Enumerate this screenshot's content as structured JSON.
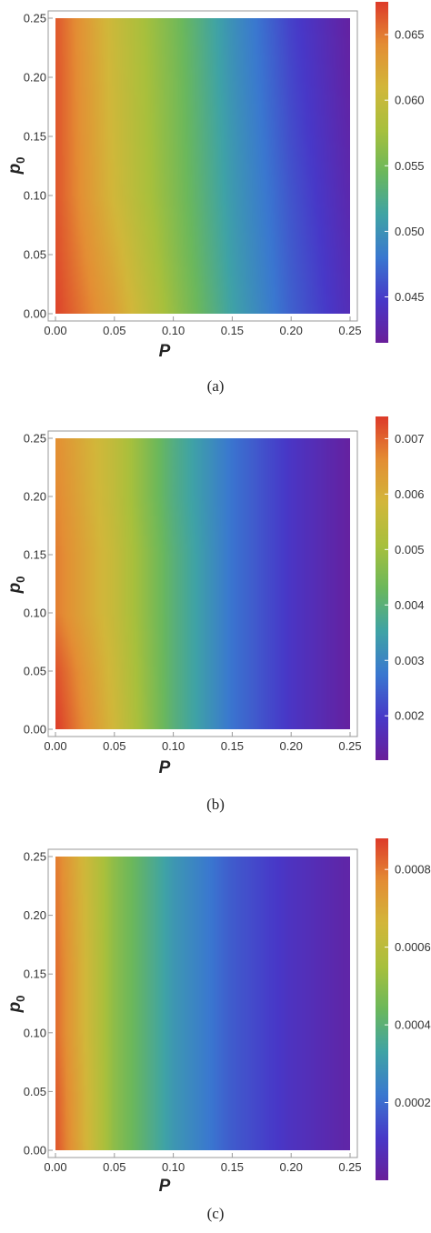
{
  "chart_data": [
    {
      "type": "heatmap",
      "caption": "(a)",
      "xlabel": "P",
      "ylabel": {
        "base": "p",
        "sub": "0"
      },
      "xlim": [
        0,
        0.25
      ],
      "ylim": [
        0,
        0.25
      ],
      "xticks": [
        "0.00",
        "0.05",
        "0.10",
        "0.15",
        "0.20",
        "0.25"
      ],
      "yticks": [
        "0.00",
        "0.05",
        "0.10",
        "0.15",
        "0.20",
        "0.25"
      ],
      "colorbar": {
        "min": 0.0415,
        "max": 0.0675,
        "ticks": [
          "0.045",
          "0.050",
          "0.055",
          "0.060",
          "0.065"
        ]
      },
      "palette": [
        "#6a1e9a",
        "#4838c8",
        "#3a78d0",
        "#3fa3a6",
        "#6bb85c",
        "#a8c03c",
        "#d2b73a",
        "#e48e34",
        "#dd3a2a"
      ],
      "x": [
        0,
        0.05,
        0.1,
        0.15,
        0.2,
        0.25
      ],
      "y": [
        0,
        0.05,
        0.1,
        0.15,
        0.2,
        0.25
      ],
      "z": [
        [
          0.0672,
          0.0628,
          0.0568,
          0.0512,
          0.0468,
          0.0435
        ],
        [
          0.0668,
          0.0618,
          0.0562,
          0.0508,
          0.0465,
          0.0432
        ],
        [
          0.0665,
          0.0608,
          0.0558,
          0.0505,
          0.0462,
          0.0428
        ],
        [
          0.0665,
          0.0606,
          0.0556,
          0.0503,
          0.0458,
          0.0425
        ],
        [
          0.0665,
          0.0604,
          0.0555,
          0.05,
          0.0455,
          0.0422
        ],
        [
          0.0664,
          0.0602,
          0.0553,
          0.0498,
          0.0452,
          0.042
        ]
      ]
    },
    {
      "type": "heatmap",
      "caption": "(b)",
      "xlabel": "P",
      "ylabel": {
        "base": "p",
        "sub": "0"
      },
      "xlim": [
        0,
        0.25
      ],
      "ylim": [
        0,
        0.25
      ],
      "xticks": [
        "0.00",
        "0.05",
        "0.10",
        "0.15",
        "0.20",
        "0.25"
      ],
      "yticks": [
        "0.00",
        "0.05",
        "0.10",
        "0.15",
        "0.20",
        "0.25"
      ],
      "colorbar": {
        "min": 0.0012,
        "max": 0.0074,
        "ticks": [
          "0.002",
          "0.003",
          "0.004",
          "0.005",
          "0.006",
          "0.007"
        ]
      },
      "palette": [
        "#6a1e9a",
        "#4838c8",
        "#3a78d0",
        "#3fa3a6",
        "#6bb85c",
        "#a8c03c",
        "#d2b73a",
        "#e48e34",
        "#dd3a2a"
      ],
      "x": [
        0,
        0.05,
        0.1,
        0.15,
        0.2,
        0.25
      ],
      "y": [
        0,
        0.05,
        0.1,
        0.15,
        0.2,
        0.25
      ],
      "z": [
        [
          0.0074,
          0.0058,
          0.004,
          0.0027,
          0.0019,
          0.0013
        ],
        [
          0.0072,
          0.0057,
          0.004,
          0.0027,
          0.0019,
          0.0013
        ],
        [
          0.0068,
          0.0056,
          0.004,
          0.0027,
          0.0019,
          0.0013
        ],
        [
          0.0068,
          0.0056,
          0.004,
          0.0027,
          0.0019,
          0.0013
        ],
        [
          0.0067,
          0.0055,
          0.0039,
          0.0027,
          0.0019,
          0.0013
        ],
        [
          0.0066,
          0.0055,
          0.0039,
          0.0027,
          0.0019,
          0.0013
        ]
      ]
    },
    {
      "type": "heatmap",
      "caption": "(c)",
      "xlabel": "P",
      "ylabel": {
        "base": "p",
        "sub": "0"
      },
      "xlim": [
        0,
        0.25
      ],
      "ylim": [
        0,
        0.25
      ],
      "xticks": [
        "0.00",
        "0.05",
        "0.10",
        "0.15",
        "0.20",
        "0.25"
      ],
      "yticks": [
        "0.00",
        "0.05",
        "0.10",
        "0.15",
        "0.20",
        "0.25"
      ],
      "colorbar": {
        "min": 0.0,
        "max": 0.00088,
        "ticks": [
          "0.0002",
          "0.0004",
          "0.0006",
          "0.0008"
        ]
      },
      "palette": [
        "#6a1e9a",
        "#4838c8",
        "#3a78d0",
        "#3fa3a6",
        "#6bb85c",
        "#a8c03c",
        "#d2b73a",
        "#e48e34",
        "#dd3a2a"
      ],
      "x": [
        0,
        0.05,
        0.1,
        0.15,
        0.2,
        0.25
      ],
      "y": [
        0,
        0.05,
        0.1,
        0.15,
        0.2,
        0.25
      ],
      "z": [
        [
          0.00085,
          0.0005,
          0.0003,
          0.00017,
          9e-05,
          3e-05
        ],
        [
          0.00084,
          0.0005,
          0.0003,
          0.00017,
          9e-05,
          3e-05
        ],
        [
          0.00082,
          0.0005,
          0.0003,
          0.00017,
          9e-05,
          3e-05
        ],
        [
          0.00082,
          0.0005,
          0.0003,
          0.00017,
          9e-05,
          3e-05
        ],
        [
          0.00081,
          0.0005,
          0.0003,
          0.00017,
          9e-05,
          3e-05
        ],
        [
          0.0008,
          0.0005,
          0.0003,
          0.00017,
          9e-05,
          3e-05
        ]
      ]
    }
  ]
}
